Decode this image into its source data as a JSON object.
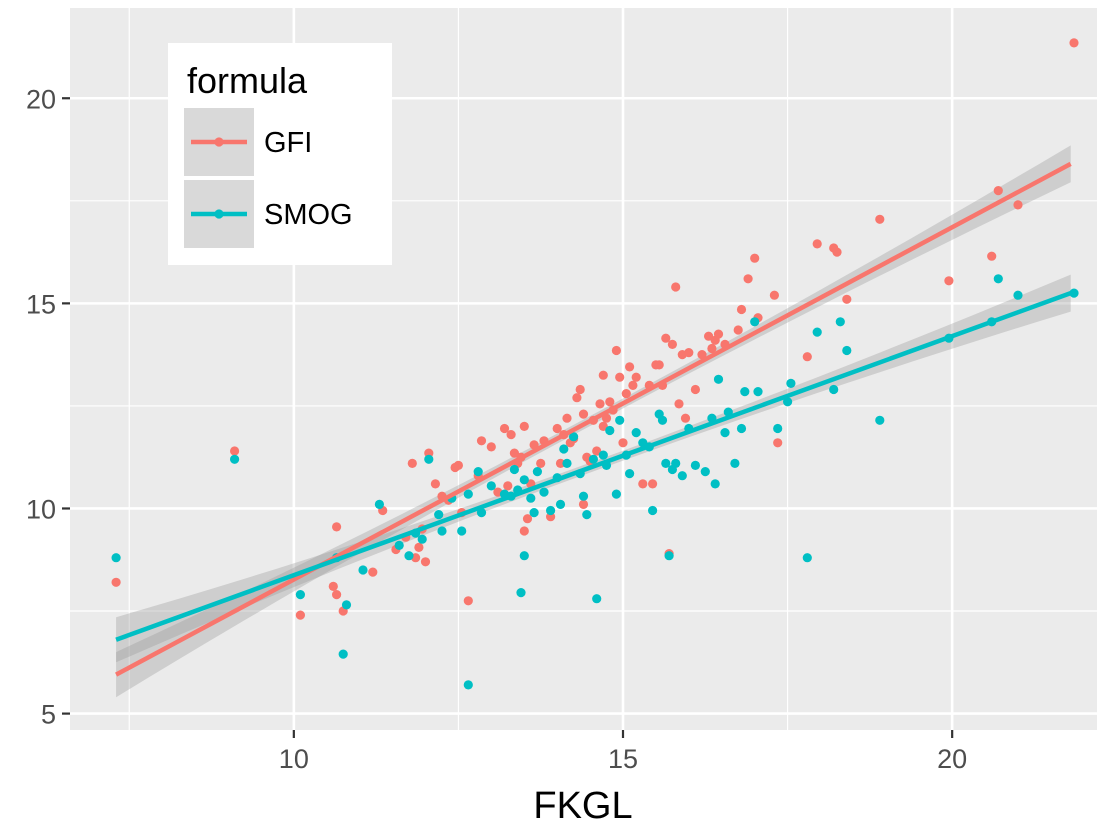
{
  "chart_data": {
    "type": "scatter",
    "xlabel": "FKGL",
    "ylabel": "",
    "xlim": [
      6.6,
      22.2
    ],
    "ylim": [
      4.6,
      22.2
    ],
    "x_ticks": [
      10,
      15,
      20
    ],
    "y_ticks": [
      5,
      10,
      15,
      20
    ],
    "grid": true,
    "legend": {
      "title": "formula",
      "placement": "top-left"
    },
    "colors": {
      "GFI": "#F8766D",
      "SMOG": "#00BFC4",
      "panel": "#EBEBEB",
      "grid": "#FFFFFF",
      "ribbon": "#999999"
    },
    "series": [
      {
        "name": "GFI",
        "trend": {
          "x0": 7.3,
          "y0": 5.95,
          "x1": 21.8,
          "y1": 18.4,
          "band_start": 0.55,
          "band_end": 0.45
        },
        "points": [
          [
            7.3,
            8.2
          ],
          [
            9.1,
            11.4
          ],
          [
            10.1,
            7.4
          ],
          [
            10.6,
            8.1
          ],
          [
            10.65,
            7.9
          ],
          [
            10.65,
            9.55
          ],
          [
            10.75,
            7.5
          ],
          [
            11.2,
            8.45
          ],
          [
            11.35,
            9.95
          ],
          [
            11.55,
            9.0
          ],
          [
            11.7,
            9.3
          ],
          [
            11.8,
            11.1
          ],
          [
            11.85,
            8.8
          ],
          [
            11.9,
            9.05
          ],
          [
            11.95,
            9.5
          ],
          [
            12.0,
            8.7
          ],
          [
            12.05,
            11.35
          ],
          [
            12.15,
            10.6
          ],
          [
            12.25,
            10.3
          ],
          [
            12.35,
            10.2
          ],
          [
            12.45,
            11.0
          ],
          [
            12.5,
            11.05
          ],
          [
            12.55,
            9.9
          ],
          [
            12.65,
            7.75
          ],
          [
            12.8,
            10.8
          ],
          [
            12.85,
            11.65
          ],
          [
            13.0,
            11.5
          ],
          [
            13.1,
            10.4
          ],
          [
            13.2,
            11.95
          ],
          [
            13.25,
            10.55
          ],
          [
            13.3,
            11.8
          ],
          [
            13.35,
            11.35
          ],
          [
            13.4,
            11.1
          ],
          [
            13.45,
            11.25
          ],
          [
            13.5,
            12.0
          ],
          [
            13.5,
            9.45
          ],
          [
            13.55,
            9.75
          ],
          [
            13.6,
            10.6
          ],
          [
            13.65,
            11.55
          ],
          [
            13.75,
            11.1
          ],
          [
            13.8,
            11.65
          ],
          [
            13.9,
            9.8
          ],
          [
            14.0,
            11.95
          ],
          [
            14.05,
            11.1
          ],
          [
            14.1,
            11.8
          ],
          [
            14.15,
            12.2
          ],
          [
            14.2,
            11.6
          ],
          [
            14.25,
            11.7
          ],
          [
            14.3,
            12.7
          ],
          [
            14.35,
            12.9
          ],
          [
            14.4,
            12.3
          ],
          [
            14.4,
            10.1
          ],
          [
            14.45,
            11.25
          ],
          [
            14.5,
            11.15
          ],
          [
            14.55,
            12.15
          ],
          [
            14.6,
            11.4
          ],
          [
            14.65,
            12.55
          ],
          [
            14.7,
            13.25
          ],
          [
            14.7,
            12.0
          ],
          [
            14.75,
            12.2
          ],
          [
            14.8,
            12.6
          ],
          [
            14.85,
            12.4
          ],
          [
            14.9,
            13.85
          ],
          [
            14.95,
            13.2
          ],
          [
            15.0,
            11.6
          ],
          [
            15.05,
            12.8
          ],
          [
            15.1,
            13.45
          ],
          [
            15.15,
            13.0
          ],
          [
            15.2,
            13.2
          ],
          [
            15.3,
            10.6
          ],
          [
            15.4,
            13.0
          ],
          [
            15.45,
            10.6
          ],
          [
            15.5,
            13.5
          ],
          [
            15.55,
            13.5
          ],
          [
            15.6,
            13.0
          ],
          [
            15.65,
            14.15
          ],
          [
            15.7,
            8.9
          ],
          [
            15.75,
            14.0
          ],
          [
            15.8,
            15.4
          ],
          [
            15.85,
            12.55
          ],
          [
            15.9,
            13.75
          ],
          [
            15.95,
            12.2
          ],
          [
            16.0,
            13.8
          ],
          [
            16.1,
            12.9
          ],
          [
            16.2,
            13.75
          ],
          [
            16.3,
            14.2
          ],
          [
            16.35,
            13.9
          ],
          [
            16.4,
            14.1
          ],
          [
            16.45,
            14.25
          ],
          [
            16.55,
            14.0
          ],
          [
            16.75,
            14.35
          ],
          [
            16.8,
            14.85
          ],
          [
            16.9,
            15.6
          ],
          [
            17.0,
            16.1
          ],
          [
            17.05,
            14.65
          ],
          [
            17.3,
            15.2
          ],
          [
            17.35,
            11.6
          ],
          [
            17.8,
            13.7
          ],
          [
            17.95,
            16.45
          ],
          [
            18.2,
            16.35
          ],
          [
            18.25,
            16.25
          ],
          [
            18.4,
            15.1
          ],
          [
            18.9,
            17.05
          ],
          [
            19.95,
            15.55
          ],
          [
            20.6,
            16.15
          ],
          [
            20.7,
            17.75
          ],
          [
            21.0,
            17.4
          ],
          [
            21.85,
            21.35
          ]
        ]
      },
      {
        "name": "SMOG",
        "trend": {
          "x0": 7.3,
          "y0": 6.8,
          "x1": 21.8,
          "y1": 15.25,
          "band_start": 0.55,
          "band_end": 0.45
        },
        "points": [
          [
            7.3,
            8.8
          ],
          [
            9.1,
            11.2
          ],
          [
            10.1,
            7.9
          ],
          [
            10.65,
            8.8
          ],
          [
            10.75,
            6.45
          ],
          [
            10.8,
            7.65
          ],
          [
            11.05,
            8.5
          ],
          [
            11.3,
            10.1
          ],
          [
            11.6,
            9.1
          ],
          [
            11.75,
            8.85
          ],
          [
            11.85,
            9.4
          ],
          [
            11.95,
            9.25
          ],
          [
            12.05,
            11.2
          ],
          [
            12.2,
            9.85
          ],
          [
            12.25,
            9.45
          ],
          [
            12.4,
            10.25
          ],
          [
            12.55,
            9.45
          ],
          [
            12.65,
            10.35
          ],
          [
            12.65,
            5.7
          ],
          [
            12.8,
            10.9
          ],
          [
            12.85,
            9.9
          ],
          [
            13.0,
            10.55
          ],
          [
            13.2,
            10.35
          ],
          [
            13.3,
            10.3
          ],
          [
            13.35,
            10.95
          ],
          [
            13.4,
            10.45
          ],
          [
            13.45,
            7.95
          ],
          [
            13.5,
            10.7
          ],
          [
            13.5,
            8.85
          ],
          [
            13.6,
            10.25
          ],
          [
            13.65,
            9.9
          ],
          [
            13.7,
            10.9
          ],
          [
            13.8,
            10.4
          ],
          [
            13.9,
            9.95
          ],
          [
            14.0,
            10.75
          ],
          [
            14.05,
            10.1
          ],
          [
            14.1,
            11.45
          ],
          [
            14.15,
            11.1
          ],
          [
            14.25,
            11.75
          ],
          [
            14.35,
            10.85
          ],
          [
            14.4,
            10.3
          ],
          [
            14.45,
            9.85
          ],
          [
            14.55,
            11.2
          ],
          [
            14.6,
            7.8
          ],
          [
            14.7,
            11.3
          ],
          [
            14.75,
            11.05
          ],
          [
            14.8,
            11.9
          ],
          [
            14.9,
            10.35
          ],
          [
            14.95,
            12.15
          ],
          [
            15.05,
            11.3
          ],
          [
            15.1,
            10.85
          ],
          [
            15.2,
            11.85
          ],
          [
            15.3,
            11.6
          ],
          [
            15.4,
            11.5
          ],
          [
            15.45,
            9.95
          ],
          [
            15.55,
            12.3
          ],
          [
            15.6,
            12.15
          ],
          [
            15.65,
            11.1
          ],
          [
            15.7,
            8.85
          ],
          [
            15.75,
            10.95
          ],
          [
            15.8,
            11.1
          ],
          [
            15.9,
            10.8
          ],
          [
            16.0,
            11.95
          ],
          [
            16.1,
            11.05
          ],
          [
            16.25,
            10.9
          ],
          [
            16.35,
            12.2
          ],
          [
            16.4,
            10.6
          ],
          [
            16.45,
            13.15
          ],
          [
            16.55,
            11.85
          ],
          [
            16.6,
            12.35
          ],
          [
            16.7,
            11.1
          ],
          [
            16.8,
            11.95
          ],
          [
            16.85,
            12.85
          ],
          [
            17.0,
            14.55
          ],
          [
            17.05,
            12.85
          ],
          [
            17.35,
            11.95
          ],
          [
            17.5,
            12.6
          ],
          [
            17.55,
            13.05
          ],
          [
            17.8,
            8.8
          ],
          [
            17.95,
            14.3
          ],
          [
            18.2,
            12.9
          ],
          [
            18.3,
            14.55
          ],
          [
            18.4,
            13.85
          ],
          [
            18.9,
            12.15
          ],
          [
            19.95,
            14.15
          ],
          [
            20.6,
            14.55
          ],
          [
            20.7,
            15.6
          ],
          [
            21.0,
            15.2
          ],
          [
            21.85,
            15.25
          ]
        ]
      }
    ]
  }
}
